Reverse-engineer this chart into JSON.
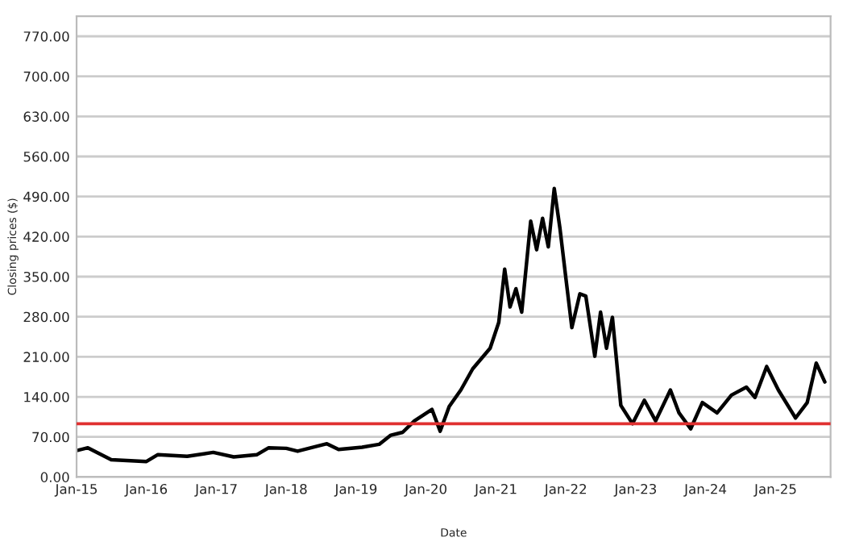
{
  "chart_data": {
    "type": "line",
    "xlabel": "Date",
    "ylabel": "Closing prices ($)",
    "x": [
      "2015-01-01",
      "2015-03-01",
      "2015-07-01",
      "2016-01-01",
      "2016-03-01",
      "2016-08-01",
      "2016-12-15",
      "2017-04-01",
      "2017-08-01",
      "2017-10-01",
      "2018-01-01",
      "2018-03-01",
      "2018-08-01",
      "2018-10-01",
      "2019-02-01",
      "2019-05-01",
      "2019-07-01",
      "2019-09-01",
      "2019-11-01",
      "2020-02-01",
      "2020-03-15",
      "2020-05-01",
      "2020-07-01",
      "2020-09-01",
      "2020-12-01",
      "2021-01-15",
      "2021-02-15",
      "2021-03-15",
      "2021-04-15",
      "2021-05-15",
      "2021-07-01",
      "2021-08-01",
      "2021-09-01",
      "2021-10-01",
      "2021-11-01",
      "2021-12-01",
      "2022-01-01",
      "2022-02-01",
      "2022-03-15",
      "2022-04-15",
      "2022-06-01",
      "2022-07-01",
      "2022-08-01",
      "2022-09-01",
      "2022-10-15",
      "2022-12-15",
      "2023-02-15",
      "2023-04-15",
      "2023-07-01",
      "2023-08-15",
      "2023-10-15",
      "2023-12-15",
      "2024-03-01",
      "2024-05-15",
      "2024-08-01",
      "2024-09-15",
      "2024-11-15",
      "2025-01-15",
      "2025-04-15",
      "2025-06-15",
      "2025-08-01",
      "2025-09-15"
    ],
    "series": [
      {
        "color": "#000000",
        "values": [
          46,
          51,
          30,
          27,
          39,
          36,
          43,
          35,
          39,
          51,
          50,
          45,
          58,
          48,
          52,
          57,
          73,
          78,
          98,
          118,
          80,
          123,
          152,
          189,
          225,
          270,
          363,
          297,
          329,
          288,
          447,
          397,
          452,
          402,
          504,
          434,
          347,
          261,
          320,
          316,
          211,
          288,
          225,
          279,
          125,
          93,
          134,
          98,
          152,
          112,
          84,
          130,
          112,
          143,
          157,
          139,
          193,
          152,
          103,
          130,
          199,
          166
        ]
      }
    ],
    "xlim": [
      "2015-01-01",
      "2025-10-15"
    ],
    "xticks": [
      {
        "value": "2015-01-01",
        "label": "Jan-15"
      },
      {
        "value": "2016-01-01",
        "label": "Jan-16"
      },
      {
        "value": "2017-01-01",
        "label": "Jan-17"
      },
      {
        "value": "2018-01-01",
        "label": "Jan-18"
      },
      {
        "value": "2019-01-01",
        "label": "Jan-19"
      },
      {
        "value": "2020-01-01",
        "label": "Jan-20"
      },
      {
        "value": "2021-01-01",
        "label": "Jan-21"
      },
      {
        "value": "2022-01-01",
        "label": "Jan-22"
      },
      {
        "value": "2023-01-01",
        "label": "Jan-23"
      },
      {
        "value": "2024-01-01",
        "label": "Jan-24"
      },
      {
        "value": "2025-01-01",
        "label": "Jan-25"
      }
    ],
    "ylim": [
      0,
      805
    ],
    "yticks": [
      {
        "value": 0,
        "label": "0.00"
      },
      {
        "value": 70,
        "label": "70.00"
      },
      {
        "value": 140,
        "label": "140.00"
      },
      {
        "value": 210,
        "label": "210.00"
      },
      {
        "value": 280,
        "label": "280.00"
      },
      {
        "value": 350,
        "label": "350.00"
      },
      {
        "value": 420,
        "label": "420.00"
      },
      {
        "value": 490,
        "label": "490.00"
      },
      {
        "value": 560,
        "label": "560.00"
      },
      {
        "value": 630,
        "label": "630.00"
      },
      {
        "value": 700,
        "label": "700.00"
      },
      {
        "value": 770,
        "label": "770.00"
      }
    ],
    "ref_lines": [
      {
        "axis": "y",
        "value": 93,
        "color": "#e03030"
      }
    ],
    "grid": "y",
    "legend": false,
    "marker": "none",
    "line_style": "solid"
  }
}
